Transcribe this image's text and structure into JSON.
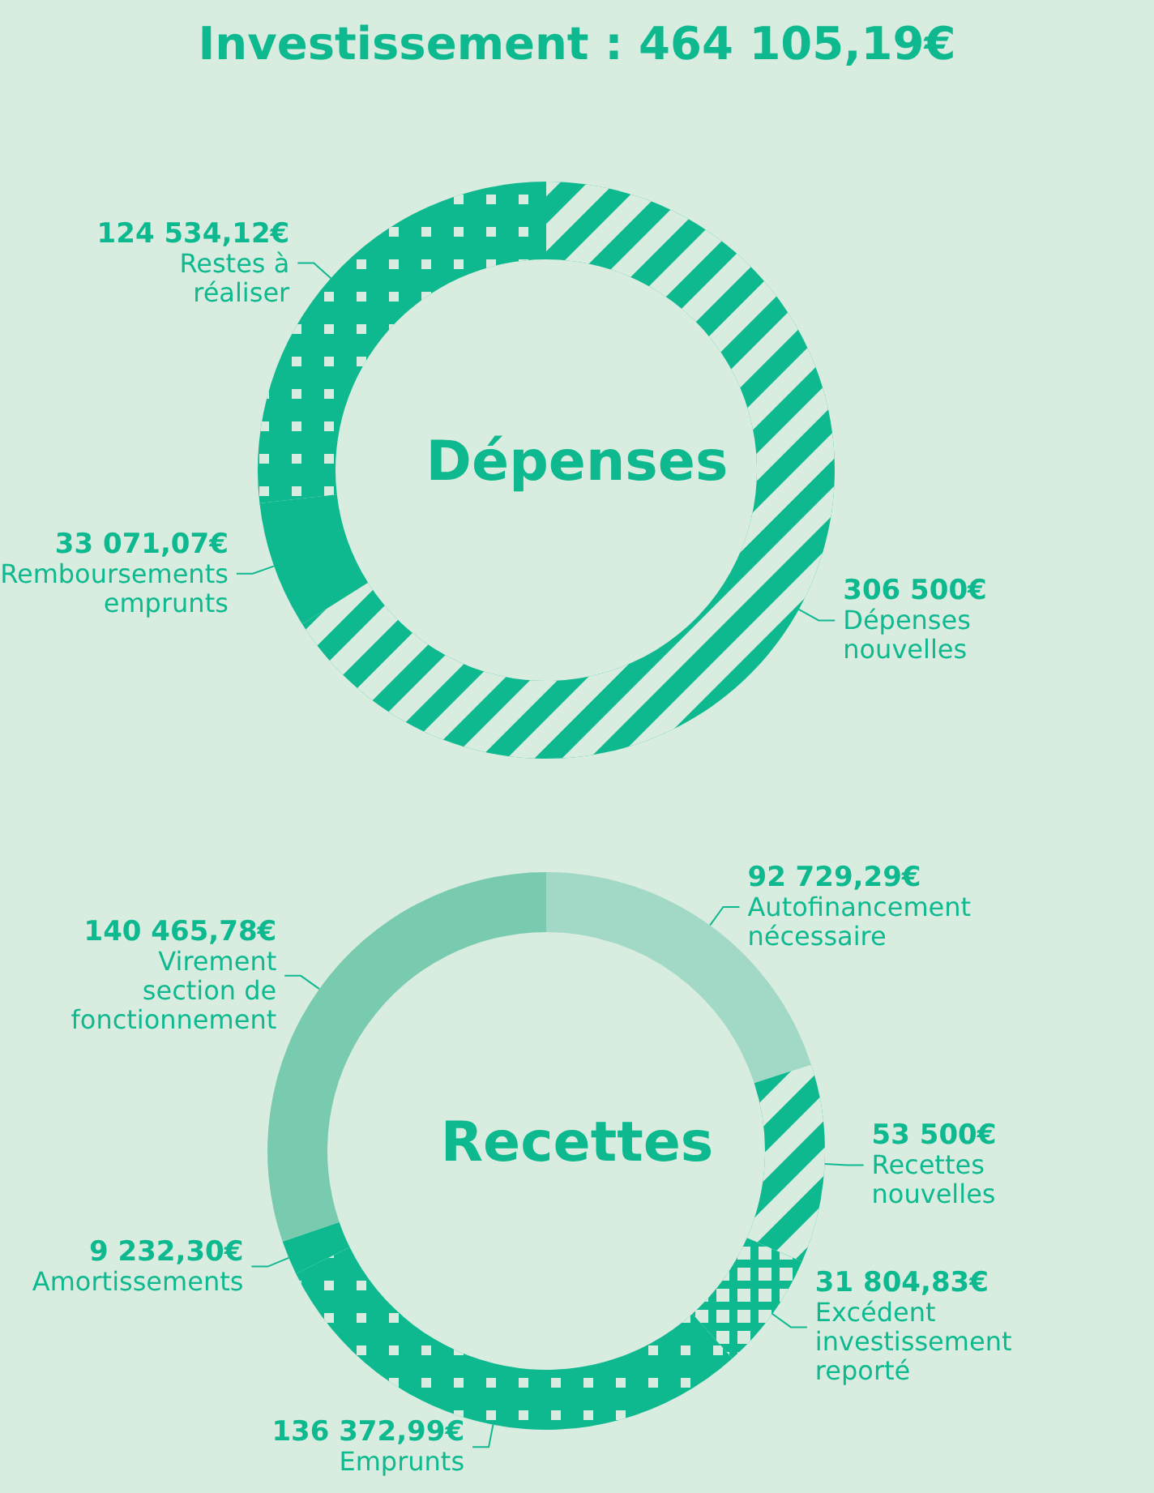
{
  "chart_data": [
    {
      "type": "donut",
      "title": "Investissement : 464 105,19€",
      "annotations": [
        "Dépenses"
      ],
      "categories": [
        "Dépenses nouvelles",
        "Remboursements emprunts",
        "Restes à réaliser"
      ],
      "values": [
        306500,
        33071.07,
        124534.12
      ],
      "value_labels": [
        "306 500€",
        "33 071,07€",
        "124 534,12€"
      ],
      "colors": [
        "#0fb98f",
        "#0fb98f",
        "#0fb98f"
      ]
    },
    {
      "type": "donut",
      "annotations": [
        "Recettes"
      ],
      "categories": [
        "Autofinancement nécessaire",
        "Recettes nouvelles",
        "Excédent investissement reporté",
        "Emprunts",
        "Amortissements",
        "Virement section de fonctionnement"
      ],
      "values": [
        92729.29,
        53500,
        31804.83,
        136372.99,
        9232.3,
        140465.78
      ],
      "value_labels": [
        "92 729,29€",
        "53 500€",
        "31 804,83€",
        "136 372,99€",
        "9 232,30€",
        "140 465,78€"
      ],
      "colors": [
        "#a2d9c6",
        "#0fb98f",
        "#0fb98f",
        "#0fb98f",
        "#0fb98f",
        "#79cbb0"
      ]
    }
  ]
}
